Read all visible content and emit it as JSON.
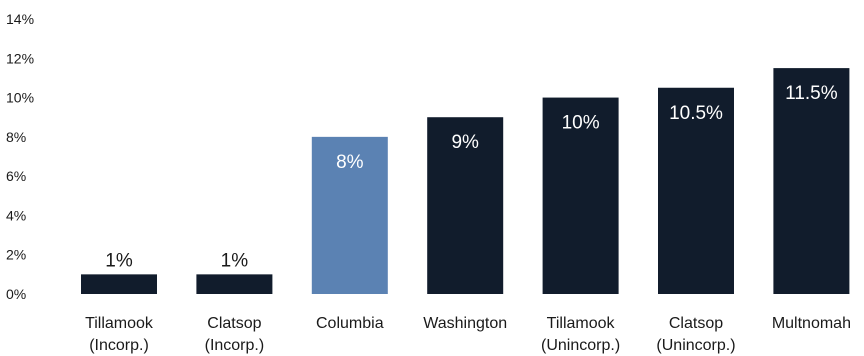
{
  "chart_data": {
    "type": "bar",
    "categories": [
      [
        "Tillamook",
        "(Incorp.)"
      ],
      [
        "Clatsop",
        "(Incorp.)"
      ],
      [
        "Columbia"
      ],
      [
        "Washington"
      ],
      [
        "Tillamook",
        "(Unincorp.)"
      ],
      [
        "Clatsop",
        "(Unincorp.)"
      ],
      [
        "Multnomah"
      ]
    ],
    "values": [
      1,
      1,
      8,
      9,
      10,
      10.5,
      11.5
    ],
    "data_labels": [
      "1%",
      "1%",
      "8%",
      "9%",
      "10%",
      "10.5%",
      "11.5%"
    ],
    "y_ticks": [
      "0%",
      "2%",
      "4%",
      "6%",
      "8%",
      "10%",
      "12%",
      "14%"
    ],
    "ylim": [
      0,
      14
    ],
    "grid": false,
    "colors": {
      "default_bar": "#111c2c",
      "highlight_bar": "#5b82b3",
      "label_inside": "#ffffff",
      "label_outside": "#1a1a1a"
    },
    "highlight_index": 2
  }
}
